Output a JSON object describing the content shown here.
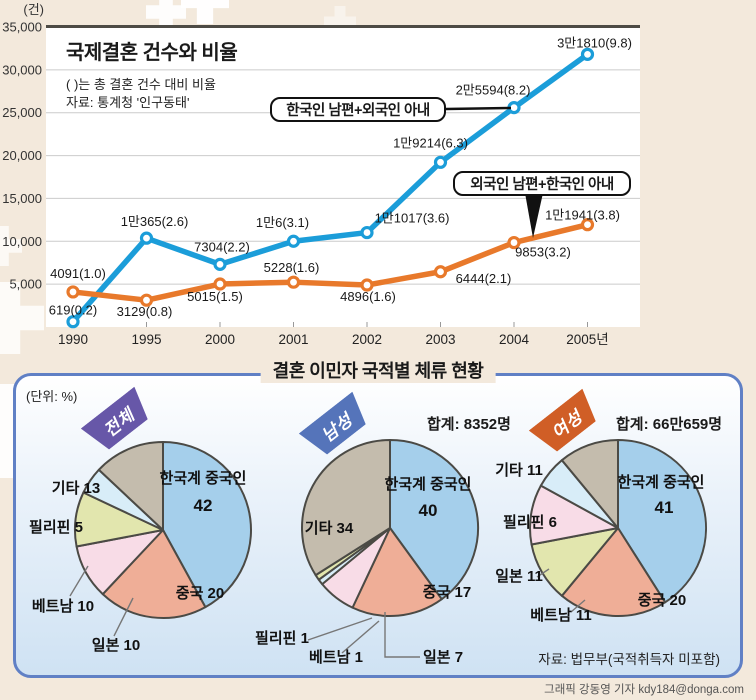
{
  "credit": "그래픽 강동영 기자 kdy184@donga.com",
  "chart_data": [
    {
      "type": "line",
      "title": "국제결혼 건수와 비율",
      "note": "( )는 총 결혼 건수 대비 비율",
      "source": "자료: 통계청 '인구동태'",
      "unit_label": "(건)",
      "categories": [
        "1990",
        "1995",
        "2000",
        "2001",
        "2002",
        "2003",
        "2004",
        "2005년"
      ],
      "ylim": [
        0,
        35000
      ],
      "grid": true,
      "legend_position": "inline-boxes",
      "ytick_values": [
        35000,
        30000,
        25000,
        20000,
        15000,
        10000,
        5000
      ],
      "ytick_labels": [
        "35,000",
        "30,000",
        "25,000",
        "20,000",
        "15,000",
        "10,000",
        "5,000"
      ],
      "series": [
        {
          "name": "한국인 남편+외국인 아내",
          "color": "#1b9dd9",
          "values": [
            619,
            10365,
            7304,
            10006,
            11017,
            19214,
            25594,
            31810
          ],
          "point_labels": [
            "619(0.2)",
            "1만365(2.6)",
            "7304(2.2)",
            "1만6(3.1)",
            "1만1017(3.6)",
            "1만9214(6.3)",
            "2만5594(8.2)",
            "3만1810(9.8)"
          ]
        },
        {
          "name": "외국인 남편+한국인 아내",
          "color": "#e8792b",
          "values": [
            4091,
            3129,
            5015,
            5228,
            4896,
            6444,
            9853,
            11941
          ],
          "point_labels": [
            "4091(1.0)",
            "3129(0.8)",
            "5015(1.5)",
            "5228(1.6)",
            "4896(1.6)",
            "6444(2.1)",
            "9853(3.2)",
            "1만1941(3.8)"
          ]
        }
      ]
    },
    {
      "type": "pie",
      "title": "결혼 이민자 국적별 체류 현황",
      "unit_note": "(단위: %)",
      "source": "자료: 법무부(국적취득자 미포함)",
      "pies": [
        {
          "banner": "전체",
          "banner_color": "#6757a8",
          "total": "",
          "slices": [
            {
              "label": "한국계 중국인",
              "value": 42,
              "color": "#a5cfeb"
            },
            {
              "label": "중국",
              "value": 20,
              "color": "#efae97"
            },
            {
              "label": "일본",
              "value": 10,
              "color": "#f8dce7"
            },
            {
              "label": "베트남",
              "value": 10,
              "color": "#e2e6ae"
            },
            {
              "label": "필리핀",
              "value": 5,
              "color": "#d8edf8"
            },
            {
              "label": "기타",
              "value": 13,
              "color": "#c4bcad"
            }
          ]
        },
        {
          "banner": "남성",
          "banner_color": "#5574ba",
          "total": "합계: 8352명",
          "slices": [
            {
              "label": "한국계 중국인",
              "value": 40,
              "color": "#a5cfeb"
            },
            {
              "label": "중국",
              "value": 17,
              "color": "#efae97"
            },
            {
              "label": "일본",
              "value": 7,
              "color": "#f8dce7"
            },
            {
              "label": "베트남",
              "value": 1,
              "color": "#d8edf8"
            },
            {
              "label": "필리핀",
              "value": 1,
              "color": "#e2e6ae"
            },
            {
              "label": "기타",
              "value": 34,
              "color": "#c4bcad"
            }
          ]
        },
        {
          "banner": "여성",
          "banner_color": "#d05e26",
          "total": "합계: 66만659명",
          "slices": [
            {
              "label": "한국계 중국인",
              "value": 41,
              "color": "#a5cfeb"
            },
            {
              "label": "중국",
              "value": 20,
              "color": "#efae97"
            },
            {
              "label": "베트남",
              "value": 11,
              "color": "#e2e6ae"
            },
            {
              "label": "일본",
              "value": 11,
              "color": "#f8dce7"
            },
            {
              "label": "필리핀",
              "value": 6,
              "color": "#d8edf8"
            },
            {
              "label": "기타",
              "value": 11,
              "color": "#c4bcad"
            }
          ]
        }
      ]
    }
  ]
}
